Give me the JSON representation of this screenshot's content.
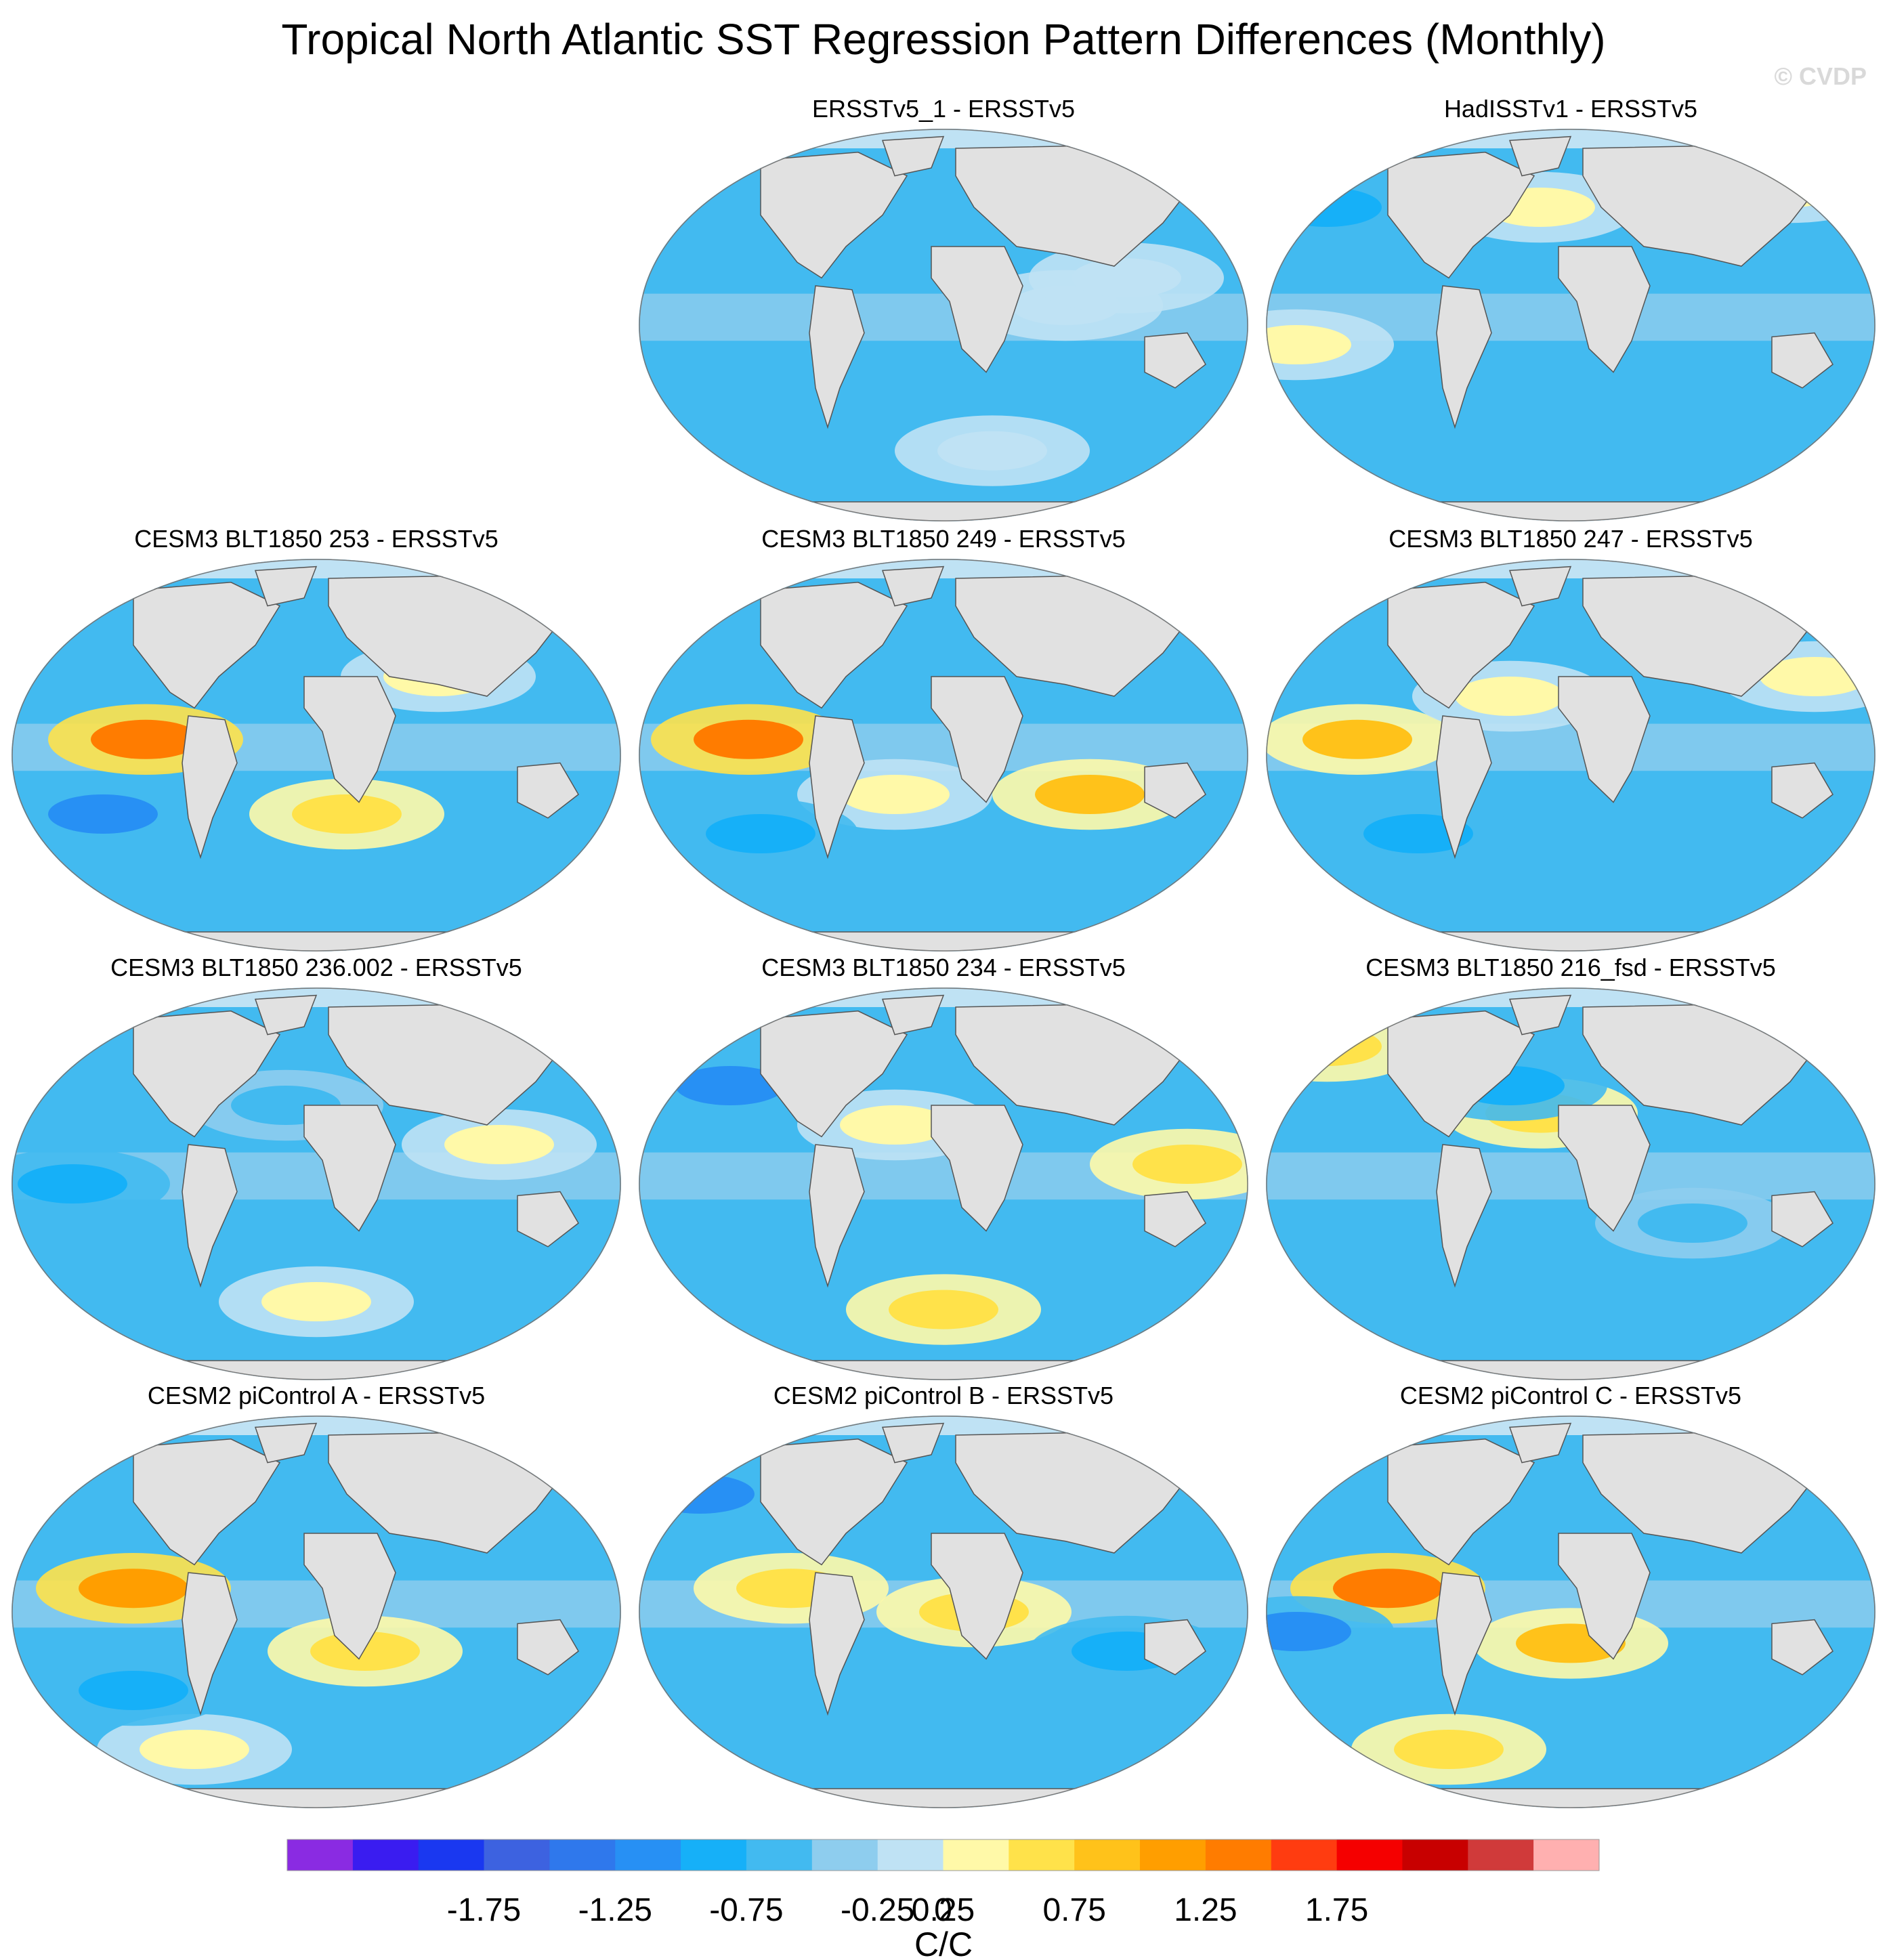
{
  "title": "Tropical North Atlantic SST Regression Pattern Differences (Monthly)",
  "watermark": "© CVDP",
  "chart_data": {
    "type": "heatmap",
    "projection": "Robinson (global, Pacific-centered)",
    "panels": [
      {
        "title": "ERSSTv5_1 - ERSSTv5",
        "row": 0,
        "col": 1,
        "features": [
          [
            0.24,
            0.7,
            0.45
          ],
          [
            -0.5,
            0.45,
            -0.55
          ],
          [
            0.18,
            0.8,
            0.38
          ],
          [
            0.12,
            0.58,
            0.82
          ]
        ]
      },
      {
        "title": "HadISSTv1 - ERSSTv5",
        "row": 0,
        "col": 2,
        "features": [
          [
            0.35,
            0.86,
            0.15
          ],
          [
            0.35,
            0.05,
            0.55
          ],
          [
            0.3,
            0.45,
            0.2
          ],
          [
            -0.6,
            0.1,
            0.2
          ]
        ]
      },
      {
        "title": "CESM3 BLT1850 253 - ERSSTv5",
        "row": 1,
        "col": 0,
        "features": [
          [
            1.25,
            0.22,
            0.46
          ],
          [
            0.55,
            0.55,
            0.65
          ],
          [
            0.45,
            0.7,
            0.3
          ],
          [
            -0.8,
            0.15,
            0.65
          ]
        ]
      },
      {
        "title": "CESM3 BLT1850 249 - ERSSTv5",
        "row": 1,
        "col": 1,
        "features": [
          [
            1.35,
            0.18,
            0.46
          ],
          [
            0.75,
            0.74,
            0.6
          ],
          [
            0.4,
            0.42,
            0.6
          ],
          [
            -0.7,
            0.2,
            0.7
          ]
        ]
      },
      {
        "title": "CESM3 BLT1850 247 - ERSSTv5",
        "row": 1,
        "col": 2,
        "features": [
          [
            0.8,
            0.15,
            0.46
          ],
          [
            0.4,
            0.4,
            0.35
          ],
          [
            -0.6,
            0.25,
            0.7
          ],
          [
            0.3,
            0.9,
            0.3
          ]
        ]
      },
      {
        "title": "CESM3 BLT1850 236.002 - ERSSTv5",
        "row": 2,
        "col": 0,
        "features": [
          [
            0.3,
            0.8,
            0.4
          ],
          [
            -0.7,
            0.1,
            0.5
          ],
          [
            0.3,
            0.5,
            0.8
          ],
          [
            -0.5,
            0.45,
            0.3
          ]
        ]
      },
      {
        "title": "CESM3 BLT1850 234 - ERSSTv5",
        "row": 2,
        "col": 1,
        "features": [
          [
            0.5,
            0.5,
            0.82
          ],
          [
            0.55,
            0.9,
            0.45
          ],
          [
            -0.8,
            0.15,
            0.25
          ],
          [
            0.4,
            0.42,
            0.35
          ]
        ]
      },
      {
        "title": "CESM3 BLT1850 216_fsd - ERSSTv5",
        "row": 2,
        "col": 2,
        "features": [
          [
            0.6,
            0.1,
            0.15
          ],
          [
            0.5,
            0.45,
            0.32
          ],
          [
            -0.7,
            0.4,
            0.25
          ],
          [
            -0.4,
            0.7,
            0.6
          ]
        ]
      },
      {
        "title": "CESM2 piControl A - ERSSTv5",
        "row": 3,
        "col": 0,
        "features": [
          [
            1.05,
            0.2,
            0.44
          ],
          [
            0.55,
            0.58,
            0.6
          ],
          [
            0.4,
            0.3,
            0.85
          ],
          [
            -0.7,
            0.2,
            0.7
          ]
        ]
      },
      {
        "title": "CESM2 piControl B - ERSSTv5",
        "row": 3,
        "col": 1,
        "features": [
          [
            0.55,
            0.25,
            0.44
          ],
          [
            -0.8,
            0.1,
            0.2
          ],
          [
            0.5,
            0.55,
            0.5
          ],
          [
            -0.6,
            0.8,
            0.6
          ]
        ]
      },
      {
        "title": "CESM2 piControl C - ERSSTv5",
        "row": 3,
        "col": 2,
        "features": [
          [
            1.45,
            0.2,
            0.44
          ],
          [
            0.9,
            0.5,
            0.58
          ],
          [
            -0.8,
            0.05,
            0.55
          ],
          [
            0.6,
            0.3,
            0.85
          ]
        ]
      }
    ],
    "colorbar": {
      "label": "C/C",
      "range": [
        -2.25,
        2.25
      ],
      "step": 0.25,
      "ticks": [
        "-1.75",
        "-1.25",
        "-0.75",
        "-0.25",
        "0",
        "0.25",
        "0.75",
        "1.25",
        "1.75"
      ],
      "tick_values": [
        -1.75,
        -1.25,
        -0.75,
        -0.25,
        0,
        0.25,
        0.75,
        1.25,
        1.75
      ],
      "colors": [
        "#8a2be2",
        "#3a1cf0",
        "#1a38f0",
        "#3d62e0",
        "#2f78ec",
        "#2790f4",
        "#16b0f8",
        "#42baf0",
        "#8ecdee",
        "#bfe2f4",
        "#fff9a8",
        "#ffe24a",
        "#ffc21a",
        "#ff9e00",
        "#ff7c00",
        "#ff3c10",
        "#f50000",
        "#c80000",
        "#d03a3a",
        "#ffb0b0"
      ]
    },
    "land_color": "#e1e1e1",
    "coast_color": "#555555"
  }
}
